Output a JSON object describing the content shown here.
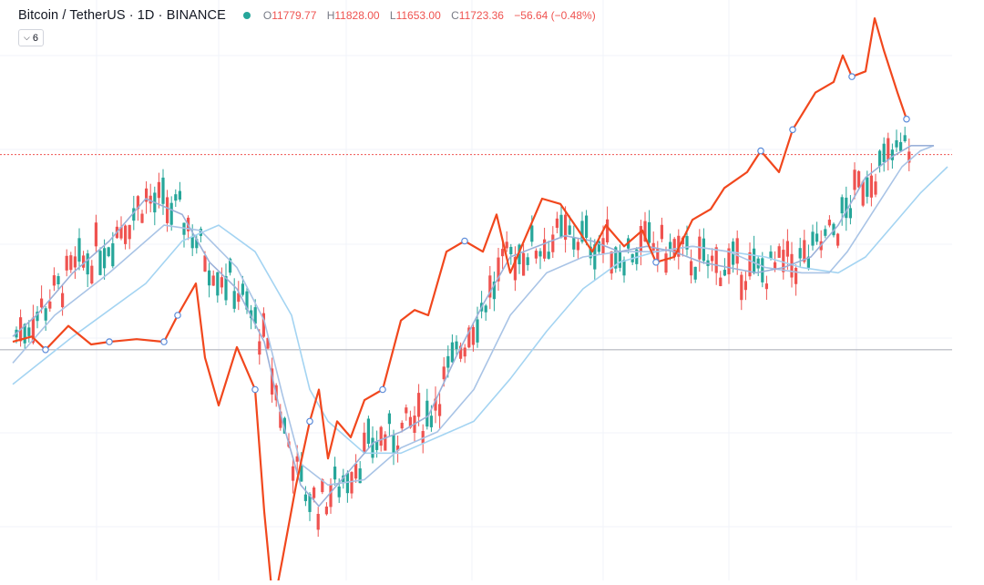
{
  "header": {
    "symbol": "Bitcoin / TetherUS · 1D · BINANCE",
    "ohlc": {
      "o_key": "O",
      "o_val": "11779.77",
      "h_key": "H",
      "h_val": "11828.00",
      "l_key": "L",
      "l_val": "11653.00",
      "c_key": "C",
      "c_val": "11723.36",
      "change": "−56.64 (−0.48%)"
    },
    "indicator_count": "6",
    "collapse_icon": "chevron-down-icon",
    "status_color": "#26a69a"
  },
  "colors": {
    "up": "#26a69a",
    "down": "#ef5350",
    "orange_line": "#f1471d",
    "ma_fast": "#9bb1d9",
    "ma_mid": "#a9c4e6",
    "ma_slow": "#a4d4f2",
    "price_line": "#ef5350",
    "baseline": "#b2b5be",
    "grid": "#f0f3fa"
  },
  "chart_data": {
    "type": "candlestick",
    "ylim": [
      0,
      100
    ],
    "grid": true,
    "current_price_level": 80.3,
    "reference_level": 43.5,
    "candles": [],
    "series": [
      {
        "kind": "orange_line",
        "points": [
          [
            14,
            45
          ],
          [
            35,
            46
          ],
          [
            50,
            43.5
          ],
          [
            75,
            48
          ],
          [
            100,
            44.5
          ],
          [
            120,
            45
          ],
          [
            150,
            45.5
          ],
          [
            180,
            45
          ],
          [
            195,
            50
          ],
          [
            215,
            56
          ],
          [
            225,
            42
          ],
          [
            240,
            33
          ],
          [
            260,
            44
          ],
          [
            280,
            36
          ],
          [
            290,
            13
          ],
          [
            300,
            -5
          ],
          [
            310,
            4
          ],
          [
            325,
            18
          ],
          [
            340,
            30
          ],
          [
            350,
            36
          ],
          [
            360,
            23
          ],
          [
            370,
            30
          ],
          [
            385,
            27
          ],
          [
            400,
            34
          ],
          [
            420,
            36
          ],
          [
            440,
            49
          ],
          [
            455,
            51
          ],
          [
            470,
            50
          ],
          [
            490,
            62
          ],
          [
            510,
            64
          ],
          [
            530,
            62
          ],
          [
            545,
            69
          ],
          [
            560,
            58
          ],
          [
            580,
            66
          ],
          [
            595,
            72
          ],
          [
            615,
            71
          ],
          [
            635,
            66
          ],
          [
            650,
            62
          ],
          [
            665,
            67
          ],
          [
            685,
            63
          ],
          [
            705,
            66
          ],
          [
            720,
            60
          ],
          [
            740,
            61
          ],
          [
            760,
            68
          ],
          [
            780,
            70
          ],
          [
            795,
            74
          ],
          [
            820,
            77
          ],
          [
            835,
            81
          ],
          [
            855,
            77
          ],
          [
            870,
            85
          ],
          [
            895,
            92
          ],
          [
            915,
            94
          ],
          [
            925,
            99
          ],
          [
            935,
            95
          ],
          [
            950,
            96
          ],
          [
            960,
            106
          ],
          [
            970,
            100
          ],
          [
            985,
            92
          ],
          [
            995,
            87
          ]
        ]
      },
      {
        "kind": "ma_fast",
        "points": [
          [
            14,
            46
          ],
          [
            40,
            50
          ],
          [
            80,
            58
          ],
          [
            120,
            64
          ],
          [
            160,
            72
          ],
          [
            200,
            69
          ],
          [
            230,
            60
          ],
          [
            260,
            55
          ],
          [
            290,
            45
          ],
          [
            310,
            30
          ],
          [
            330,
            18
          ],
          [
            350,
            14
          ],
          [
            380,
            20
          ],
          [
            410,
            26
          ],
          [
            440,
            28
          ],
          [
            470,
            31
          ],
          [
            500,
            42
          ],
          [
            530,
            52
          ],
          [
            560,
            61
          ],
          [
            590,
            63
          ],
          [
            620,
            65
          ],
          [
            650,
            64
          ],
          [
            680,
            62
          ],
          [
            710,
            63
          ],
          [
            740,
            62
          ],
          [
            770,
            60
          ],
          [
            800,
            59
          ],
          [
            830,
            58
          ],
          [
            860,
            59
          ],
          [
            890,
            61
          ],
          [
            920,
            67
          ],
          [
            950,
            76
          ],
          [
            980,
            80
          ],
          [
            1000,
            82
          ],
          [
            1025,
            82
          ]
        ]
      },
      {
        "kind": "ma_mid",
        "points": [
          [
            14,
            41
          ],
          [
            60,
            50
          ],
          [
            120,
            58
          ],
          [
            180,
            67
          ],
          [
            220,
            66
          ],
          [
            260,
            59
          ],
          [
            290,
            49
          ],
          [
            310,
            35
          ],
          [
            330,
            22
          ],
          [
            360,
            18
          ],
          [
            400,
            19
          ],
          [
            440,
            25
          ],
          [
            480,
            28
          ],
          [
            520,
            36
          ],
          [
            560,
            50
          ],
          [
            600,
            58
          ],
          [
            640,
            61
          ],
          [
            680,
            62
          ],
          [
            720,
            62
          ],
          [
            760,
            63
          ],
          [
            800,
            62
          ],
          [
            840,
            59
          ],
          [
            880,
            58
          ],
          [
            910,
            58
          ],
          [
            930,
            62
          ],
          [
            960,
            70
          ],
          [
            990,
            78
          ],
          [
            1010,
            81
          ],
          [
            1025,
            82
          ]
        ]
      },
      {
        "kind": "ma_slow",
        "points": [
          [
            14,
            37
          ],
          [
            80,
            46
          ],
          [
            160,
            56
          ],
          [
            200,
            64
          ],
          [
            240,
            67
          ],
          [
            280,
            62
          ],
          [
            320,
            50
          ],
          [
            340,
            36
          ],
          [
            360,
            30
          ],
          [
            400,
            24
          ],
          [
            440,
            24
          ],
          [
            480,
            27
          ],
          [
            520,
            30
          ],
          [
            560,
            38
          ],
          [
            600,
            47
          ],
          [
            640,
            55
          ],
          [
            680,
            60
          ],
          [
            720,
            62
          ],
          [
            760,
            63
          ],
          [
            800,
            62
          ],
          [
            840,
            61
          ],
          [
            880,
            59
          ],
          [
            920,
            58
          ],
          [
            950,
            61
          ],
          [
            980,
            67
          ],
          [
            1010,
            73
          ],
          [
            1040,
            78
          ]
        ]
      }
    ]
  }
}
